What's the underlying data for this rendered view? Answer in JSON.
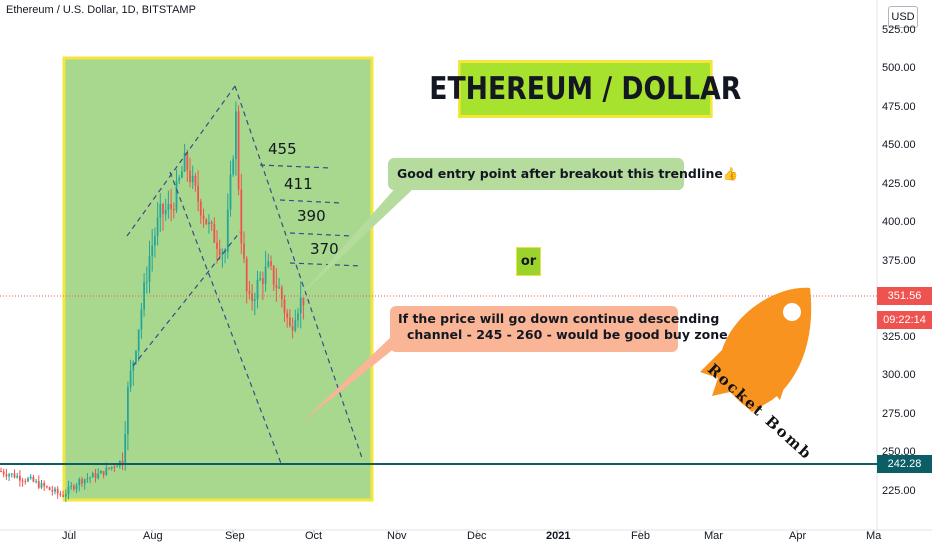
{
  "header": {
    "symbol_title": "Ethereum / U.S. Dollar, 1D, BITSTAMP",
    "currency_button": "USD"
  },
  "annotations": {
    "headline": "ETHEREUM / DOLLAR",
    "green_callout": "Good entry point after breakout this trendline👍",
    "orange_callout_line1": "If the price will go down continue descending",
    "orange_callout_line2": "channel - 245 - 260 - would be good buy zone",
    "or_label": "or",
    "levels": [
      "455",
      "411",
      "390",
      "370"
    ],
    "rocket_label": "Rocket Bomb"
  },
  "price_axis": {
    "ticks": [
      "525.00",
      "500.00",
      "475.00",
      "450.00",
      "425.00",
      "400.00",
      "375.00",
      "350.00",
      "325.00",
      "300.00",
      "275.00",
      "250.00",
      "225.00"
    ],
    "last_price": "351.56",
    "countdown": "09:22:14",
    "horizontal_line_price": "242.28"
  },
  "time_axis": {
    "ticks": [
      "Jul",
      "Aug",
      "Sep",
      "Oct",
      "Nov",
      "Dec",
      "2021",
      "Feb",
      "Mar",
      "Apr",
      "Ma"
    ]
  },
  "colors": {
    "up": "#26a69a",
    "down": "#ef5350",
    "highlight_box": "#a8d88e",
    "highlight_border": "#f5e63c",
    "horizontal_line": "#0b5e66",
    "last_price": "#ef5350",
    "rocket": "#f7931e"
  },
  "chart_data": {
    "type": "candlestick",
    "title": "Ethereum / U.S. Dollar, 1D, BITSTAMP",
    "ylim": [
      210,
      530
    ],
    "x_ticks": [
      "Jul",
      "Aug",
      "Sep",
      "Oct",
      "Nov",
      "Dec",
      "2021",
      "Feb",
      "Mar",
      "Apr",
      "Ma"
    ],
    "horizontal_levels": [
      242.28,
      351.56
    ],
    "annotated_levels": [
      455,
      411,
      390,
      370
    ],
    "buy_zone": [
      245,
      260
    ]
  }
}
